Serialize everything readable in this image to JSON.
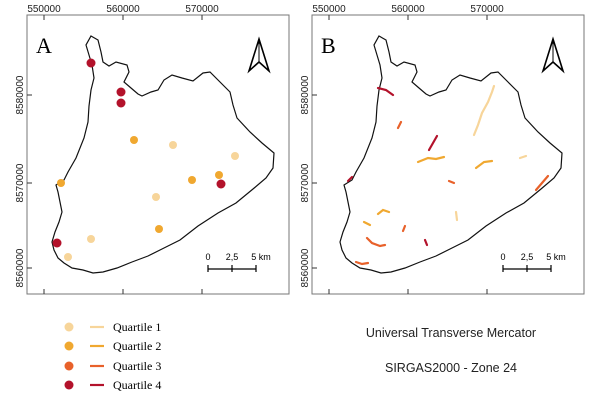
{
  "panels": [
    {
      "letter": "A",
      "x_ticks": [
        "550000",
        "560000",
        "570000"
      ],
      "y_ticks": [
        "8580000",
        "8570000",
        "8560000"
      ],
      "scalebar": {
        "labels": [
          "0",
          "2,5",
          "5 km"
        ]
      }
    },
    {
      "letter": "B",
      "x_ticks": [
        "550000",
        "560000",
        "570000"
      ],
      "y_ticks": [
        "8580000",
        "8570000",
        "8560000"
      ],
      "scalebar": {
        "labels": [
          "0",
          "2,5",
          "5 km"
        ]
      }
    }
  ],
  "legend": {
    "items": [
      {
        "label": "Quartile 1",
        "color": "#f7d59a"
      },
      {
        "label": "Quartile 2",
        "color": "#f0a830"
      },
      {
        "label": "Quartile 3",
        "color": "#e8612a"
      },
      {
        "label": "Quartile 4",
        "color": "#b3122b"
      }
    ]
  },
  "projection": {
    "line1": "Universal Transverse Mercator",
    "line2": "SIRGAS2000 - Zone 24"
  }
}
